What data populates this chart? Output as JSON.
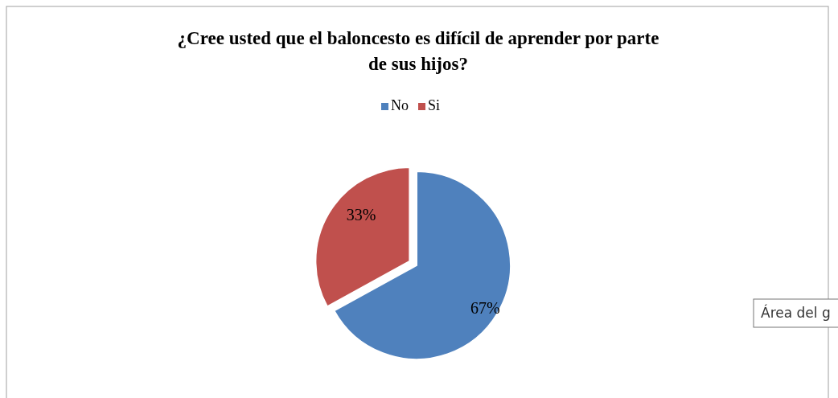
{
  "chart_data": {
    "type": "pie",
    "title": "¿Cree usted que el baloncesto es difícil de aprender por parte de sus hijos?",
    "categories": [
      "No",
      "Si"
    ],
    "values": [
      67,
      33
    ],
    "colors": [
      "#4f81bd",
      "#c0504d"
    ],
    "value_labels": [
      "67%",
      "33%"
    ],
    "legend": "top",
    "annotations": [
      "Área del g"
    ]
  }
}
